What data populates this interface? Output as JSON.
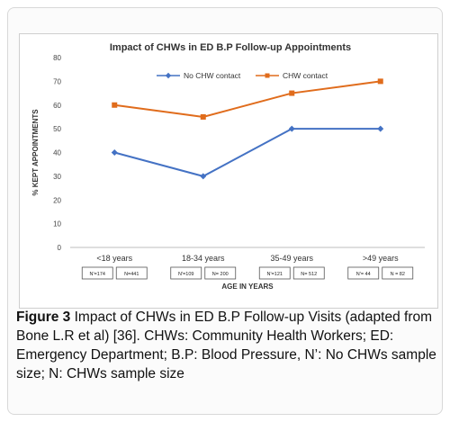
{
  "chart_data": {
    "type": "line",
    "title": "Impact of CHWs  in ED B.P Follow-up Appointments",
    "xlabel": "AGE IN YEARS",
    "ylabel": "% KEPT APPOINTMENTS",
    "ylim": [
      0,
      80
    ],
    "yticks": [
      "0",
      "10",
      "20",
      "30",
      "40",
      "50",
      "60",
      "70",
      "80"
    ],
    "categories": [
      "<18 years",
      "18-34 years",
      "35-49 years",
      ">49 years"
    ],
    "series": [
      {
        "name": "No CHW contact",
        "color": "#4472c4",
        "marker": "diamond",
        "values": [
          40,
          30,
          50,
          50
        ]
      },
      {
        "name": "CHW contact",
        "color": "#e06c1c",
        "marker": "square",
        "values": [
          60,
          55,
          65,
          70
        ]
      }
    ],
    "sample_sizes": [
      [
        "N'=174",
        "N=441"
      ],
      [
        "N'=109",
        "N= 200"
      ],
      [
        "N'=121",
        "N= 512"
      ],
      [
        "N'= 44",
        "N = 82"
      ]
    ],
    "legend_position": "top-center",
    "grid": false
  },
  "caption": {
    "label": "Figure 3",
    "bold_text": "Impact of CHWs in ED B.P Follow-up Visits (adapted from Bone L.R et al) [36].",
    "text": " CHWs: Community Health Workers; ED: Emergency Department; B.P: Blood Pressure, N’: No CHWs sample size; N: CHWs sample size"
  }
}
